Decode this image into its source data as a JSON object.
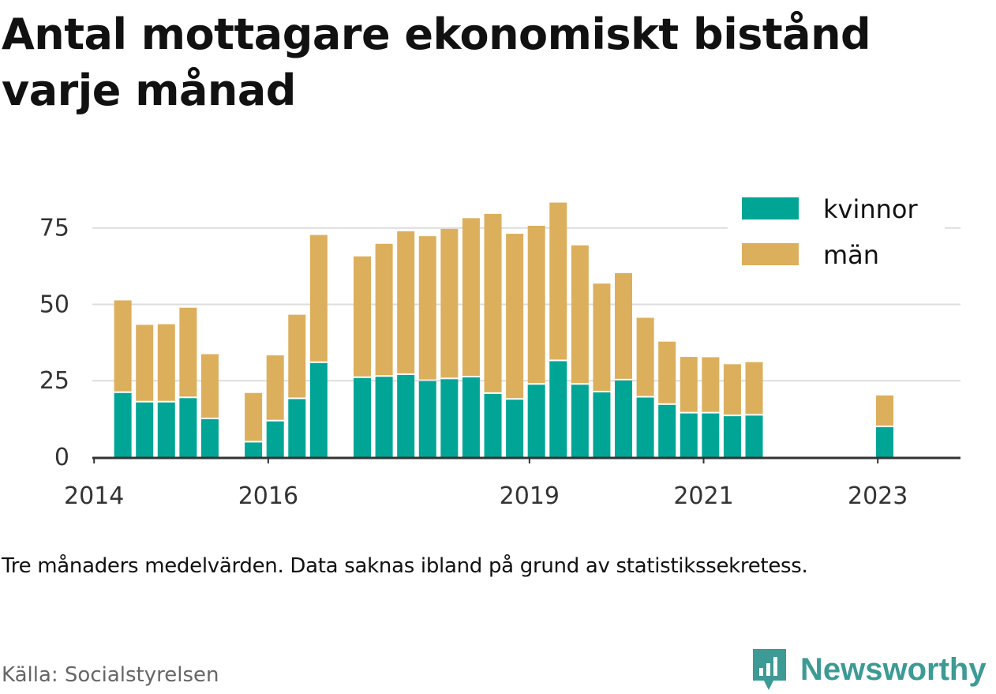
{
  "title": "Antal mottagare ekonomiskt bistånd varje månad",
  "note": "Tre månaders medelvärden. Data saknas ibland på grund av statistikssekretess.",
  "source": "Källa: Socialstyrelsen",
  "brand": "Newsworthy",
  "colors": {
    "kvinnor": "#00a596",
    "man": "#dcaf5d",
    "grid": "#dddddd",
    "axis": "#333333",
    "brand": "#3d9a94"
  },
  "chart_data": {
    "type": "bar",
    "stacked": true,
    "x_unit": "year",
    "x_ticks": [
      2014,
      2016,
      2019,
      2021,
      2023
    ],
    "x_tick_labels": [
      "2014",
      "2016",
      "2019",
      "2021",
      "2023"
    ],
    "xlim": [
      2013.98,
      2023.95
    ],
    "y_ticks": [
      0,
      25,
      50,
      75
    ],
    "y_tick_labels": [
      "0",
      "25",
      "50",
      "75"
    ],
    "ylim": [
      0,
      85
    ],
    "grid": true,
    "legend_position": "top-right",
    "x": [
      2014.33,
      2014.58,
      2014.83,
      2015.08,
      2015.33,
      2015.83,
      2016.08,
      2016.33,
      2016.58,
      2017.08,
      2017.33,
      2017.58,
      2017.83,
      2018.08,
      2018.33,
      2018.58,
      2018.83,
      2019.08,
      2019.33,
      2019.58,
      2019.83,
      2020.08,
      2020.33,
      2020.58,
      2020.83,
      2021.08,
      2021.33,
      2021.58,
      2023.08
    ],
    "series": [
      {
        "name": "kvinnor",
        "values": [
          21,
          17.9,
          17.9,
          19.3,
          12.4,
          4.8,
          11.7,
          19,
          30.8,
          25.9,
          26.3,
          26.9,
          24.9,
          25.5,
          26.1,
          20.7,
          18.8,
          23.7,
          31.4,
          23.7,
          21.2,
          25.1,
          19.5,
          17.1,
          14.3,
          14.3,
          13.4,
          13.6,
          9.8
        ]
      },
      {
        "name": "män",
        "values": [
          30.3,
          25.4,
          25.6,
          29.6,
          21.3,
          16.2,
          21.6,
          27.6,
          41.9,
          39.8,
          43.5,
          47,
          47.4,
          49.2,
          52.1,
          58.9,
          54.3,
          52,
          51.9,
          45.6,
          35.6,
          35.1,
          26.1,
          20.7,
          18.5,
          18.4,
          17,
          17.5,
          10.4
        ]
      }
    ]
  }
}
